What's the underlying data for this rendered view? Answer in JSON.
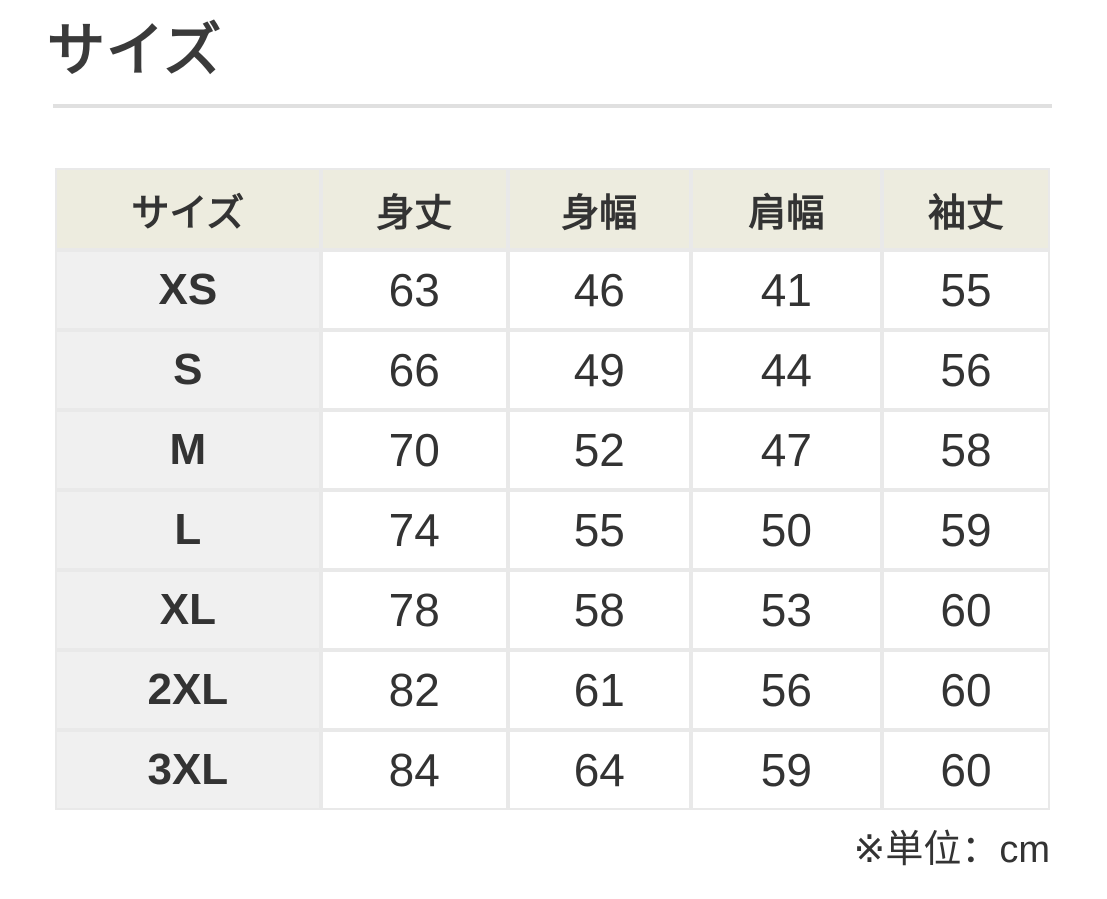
{
  "section": {
    "title": "サイズ",
    "unit_note": "※単位：cm"
  },
  "size_table": {
    "columns": [
      "サイズ",
      "身丈",
      "身幅",
      "肩幅",
      "袖丈"
    ],
    "rows": [
      {
        "size": "XS",
        "values": [
          "63",
          "46",
          "41",
          "55"
        ]
      },
      {
        "size": "S",
        "values": [
          "66",
          "49",
          "44",
          "56"
        ]
      },
      {
        "size": "M",
        "values": [
          "70",
          "52",
          "47",
          "58"
        ]
      },
      {
        "size": "L",
        "values": [
          "74",
          "55",
          "50",
          "59"
        ]
      },
      {
        "size": "XL",
        "values": [
          "78",
          "58",
          "53",
          "60"
        ]
      },
      {
        "size": "2XL",
        "values": [
          "82",
          "61",
          "56",
          "60"
        ]
      },
      {
        "size": "3XL",
        "values": [
          "84",
          "64",
          "59",
          "60"
        ]
      }
    ],
    "colors": {
      "header_bg": "#edecdf",
      "row_label_bg": "#f0f0f0",
      "grid_border": "#e9e9e9",
      "divider": "#e0e0e0",
      "text": "#333333"
    }
  }
}
